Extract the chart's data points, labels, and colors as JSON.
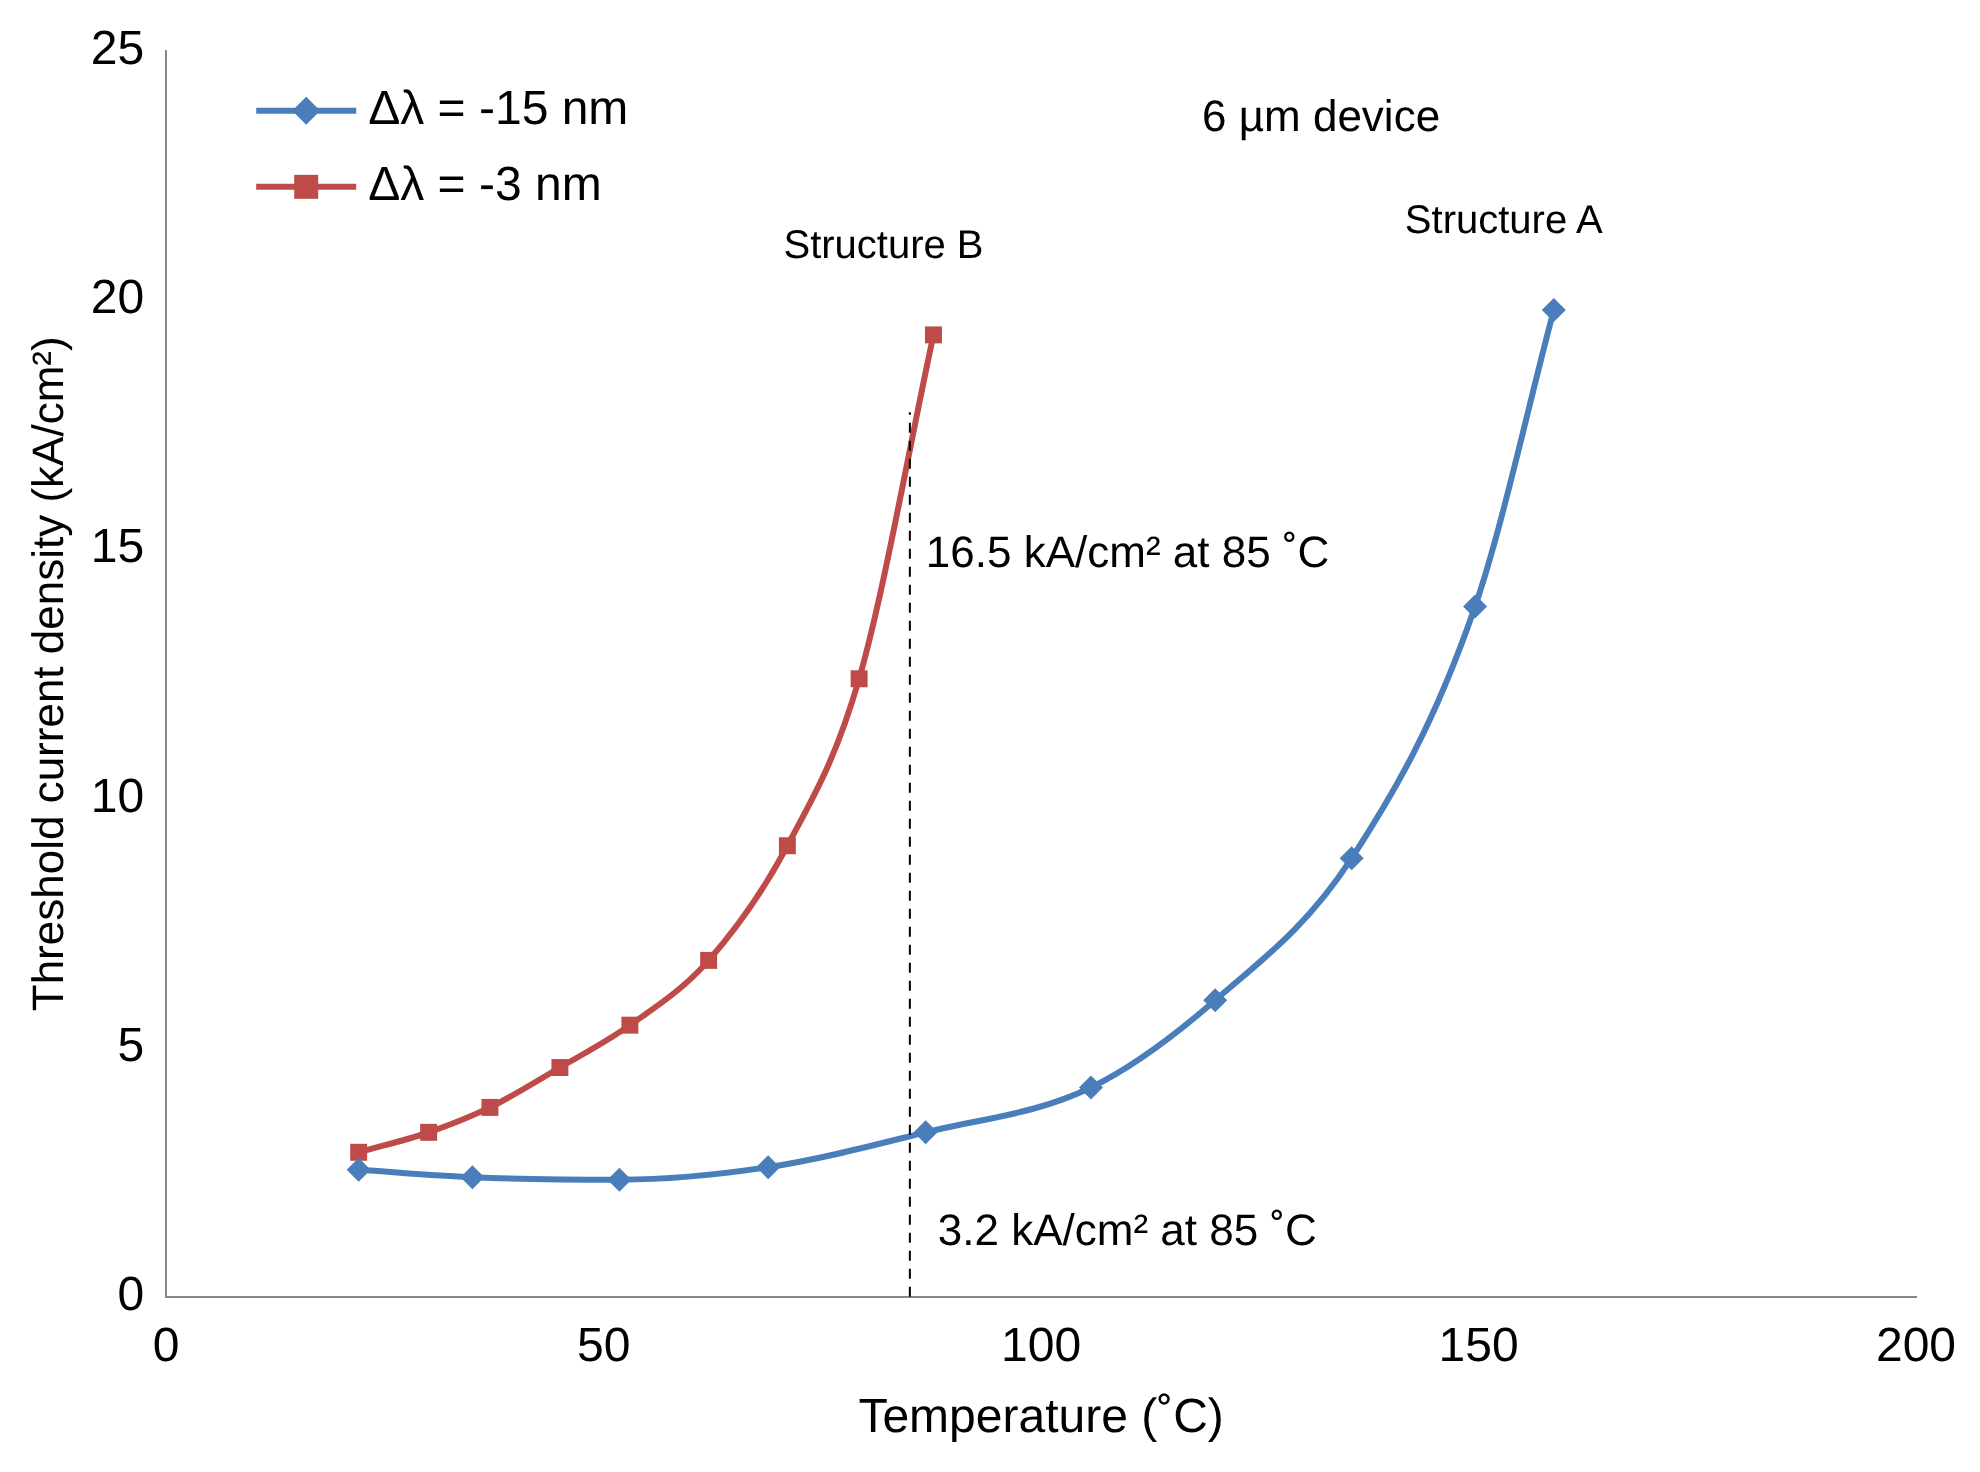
{
  "chart_data": {
    "type": "line",
    "xlabel": "Temperature (˚C)",
    "ylabel": "Threshold current density (kA/cm²)",
    "xlim": [
      0,
      200
    ],
    "xticks": [
      0,
      50,
      100,
      150,
      200
    ],
    "ylim": [
      0,
      25
    ],
    "yticks": [
      0,
      5,
      10,
      15,
      20,
      25
    ],
    "grid": false,
    "legend": "top left",
    "series": [
      {
        "name": "Δλ = -15 nm",
        "color": "#4a7ebb",
        "marker": "diamond",
        "x": [
          22,
          35,
          51.8,
          68.8,
          86.8,
          105.7,
          119.9,
          135.5,
          149.6,
          158.6
        ],
        "values": [
          2.55,
          2.4,
          2.35,
          2.6,
          3.3,
          4.2,
          5.95,
          8.8,
          13.85,
          19.8
        ]
      },
      {
        "name": "Δλ = -3 nm",
        "color": "#be4b48",
        "marker": "square",
        "x": [
          22,
          30,
          37,
          45,
          53,
          62,
          71,
          79.2,
          87.7
        ],
        "values": [
          2.9,
          3.3,
          3.8,
          4.6,
          5.45,
          6.75,
          9.05,
          12.4,
          19.3
        ]
      }
    ],
    "ref_lines": [
      {
        "axis": "x",
        "value": 85,
        "color": "#000000",
        "line_style": "dashed"
      }
    ],
    "annotations": [
      "6 µm device",
      {
        "text": "Structure B",
        "x": 87.7,
        "y": 19.3
      },
      {
        "text": "Structure A",
        "x": 158.6,
        "y": 19.8
      },
      {
        "text": "16.5 kA/cm² at 85 ˚C",
        "x": 85,
        "y": 16.5
      },
      {
        "text": "3.2 kA/cm² at 85 ˚C",
        "x": 85,
        "y": 3.2
      }
    ]
  }
}
